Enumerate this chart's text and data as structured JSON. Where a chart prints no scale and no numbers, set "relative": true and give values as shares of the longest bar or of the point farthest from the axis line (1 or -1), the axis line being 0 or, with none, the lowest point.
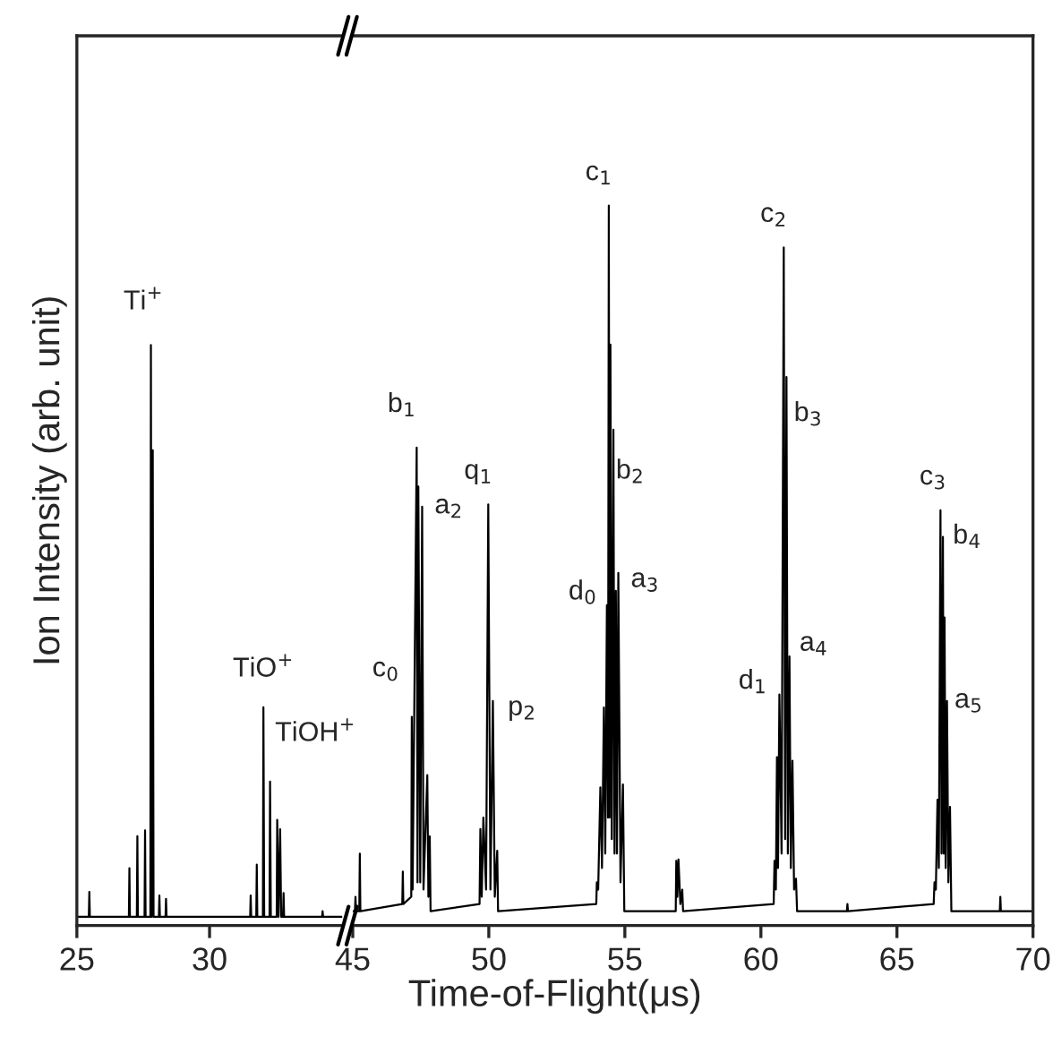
{
  "chart_data": [
    {
      "type": "line",
      "relative": true,
      "ylabel": "Ion Intensity (arb. unit)",
      "xlim": [
        25,
        35
      ],
      "xticks": [
        25,
        30
      ],
      "marker": "none",
      "line_style": "solid",
      "series": [
        {
          "color": "#000000",
          "x": [
            25.0,
            25.45,
            25.47,
            25.49,
            26.96,
            26.98,
            27.0,
            27.26,
            27.28,
            27.3,
            27.55,
            27.57,
            27.59,
            27.77,
            27.79,
            27.82,
            27.86,
            27.89,
            28.09,
            28.11,
            28.13,
            28.34,
            28.36,
            28.38,
            31.53,
            31.55,
            31.57,
            31.76,
            31.78,
            31.8,
            32.01,
            32.03,
            32.06,
            32.26,
            32.28,
            32.31,
            32.53,
            32.55,
            32.6,
            32.66,
            32.7,
            32.77,
            32.79,
            32.81,
            34.24,
            34.26,
            34.28,
            35.0
          ],
          "values": [
            0.015,
            0.015,
            0.058,
            0.015,
            0.015,
            0.099,
            0.015,
            0.015,
            0.154,
            0.015,
            0.015,
            0.164,
            0.015,
            0.015,
            1.0,
            0.015,
            0.819,
            0.015,
            0.015,
            0.052,
            0.015,
            0.015,
            0.046,
            0.015,
            0.015,
            0.052,
            0.015,
            0.015,
            0.105,
            0.015,
            0.015,
            0.376,
            0.015,
            0.015,
            0.248,
            0.015,
            0.015,
            0.182,
            0.015,
            0.166,
            0.015,
            0.015,
            0.056,
            0.015,
            0.015,
            0.025,
            0.015,
            0.015
          ]
        }
      ],
      "annotations": [
        {
          "text": "Ti$^{+}$",
          "x": 27.79,
          "y": 1.0
        },
        {
          "text": "TiO$^{+}$",
          "x": 32.03,
          "y": 0.376
        },
        {
          "text": "TiOH$^{+}$",
          "x": 32.28,
          "y": 0.248
        }
      ]
    },
    {
      "type": "line",
      "relative": true,
      "xlabel": "Time-of-Flight(μs)",
      "xlim": [
        45,
        70
      ],
      "xticks": [
        45,
        50,
        55,
        60,
        65,
        70
      ],
      "marker": "none",
      "line_style": "solid",
      "series": [
        {
          "color": "#000000",
          "x": [
            45.0,
            45.08,
            45.1,
            45.12,
            45.24,
            45.26,
            45.28,
            46.82,
            46.84,
            46.86,
            47.15,
            47.17,
            47.2,
            47.35,
            47.38,
            47.41,
            47.48,
            47.55,
            47.6,
            47.74,
            47.78,
            47.83,
            47.86,
            49.66,
            49.69,
            49.74,
            49.8,
            49.9,
            49.98,
            50.06,
            50.15,
            50.22,
            50.31,
            50.34,
            53.95,
            53.97,
            54.02,
            54.1,
            54.16,
            54.23,
            54.28,
            54.34,
            54.38,
            54.41,
            54.44,
            54.47,
            54.52,
            54.58,
            54.62,
            54.67,
            54.71,
            54.76,
            54.84,
            54.93,
            54.98,
            56.87,
            56.89,
            56.93,
            56.97,
            57.04,
            57.11,
            57.14,
            60.47,
            60.5,
            60.55,
            60.59,
            60.63,
            60.68,
            60.76,
            60.84,
            60.89,
            60.94,
            60.99,
            61.05,
            61.1,
            61.16,
            61.22,
            61.29,
            61.33,
            63.16,
            63.18,
            63.2,
            66.35,
            66.38,
            66.43,
            66.49,
            66.54,
            66.6,
            66.64,
            66.69,
            66.72,
            66.75,
            66.79,
            66.84,
            66.89,
            66.95,
            67.0,
            68.78,
            68.8,
            68.82,
            70.0
          ],
          "values": [
            0.02,
            0.02,
            0.04,
            0.02,
            0.02,
            0.1,
            0.02,
            0.03,
            0.075,
            0.03,
            0.04,
            0.29,
            0.05,
            0.664,
            0.06,
            0.61,
            0.06,
            0.582,
            0.05,
            0.209,
            0.04,
            0.124,
            0.02,
            0.03,
            0.134,
            0.04,
            0.15,
            0.05,
            0.585,
            0.05,
            0.312,
            0.04,
            0.104,
            0.02,
            0.03,
            0.06,
            0.05,
            0.192,
            0.08,
            0.303,
            0.1,
            0.445,
            0.15,
            1.0,
            0.15,
            0.807,
            0.12,
            0.689,
            0.1,
            0.465,
            0.1,
            0.49,
            0.06,
            0.196,
            0.02,
            0.02,
            0.09,
            0.04,
            0.092,
            0.03,
            0.05,
            0.02,
            0.03,
            0.09,
            0.05,
            0.234,
            0.08,
            0.321,
            0.1,
            0.942,
            0.12,
            0.762,
            0.1,
            0.374,
            0.08,
            0.229,
            0.05,
            0.065,
            0.02,
            0.02,
            0.03,
            0.02,
            0.03,
            0.06,
            0.05,
            0.175,
            0.08,
            0.577,
            0.1,
            0.54,
            0.1,
            0.428,
            0.08,
            0.312,
            0.06,
            0.165,
            0.02,
            0.02,
            0.04,
            0.02,
            0.02
          ]
        }
      ],
      "annotations": [
        {
          "text": "c$_{0}$",
          "x": 47.17,
          "y": 0.29
        },
        {
          "text": "b$_{1}$",
          "x": 47.35,
          "y": 0.664
        },
        {
          "text": "a$_{2}$",
          "x": 47.55,
          "y": 0.582
        },
        {
          "text": "q$_{1}$",
          "x": 49.98,
          "y": 0.585
        },
        {
          "text": "p$_{2}$",
          "x": 50.15,
          "y": 0.312
        },
        {
          "text": "c$_{1}$",
          "x": 54.41,
          "y": 1.0
        },
        {
          "text": "d$_{0}$",
          "x": 54.34,
          "y": 0.445
        },
        {
          "text": "b$_{2}$",
          "x": 54.58,
          "y": 0.689
        },
        {
          "text": "a$_{3}$",
          "x": 54.76,
          "y": 0.49
        },
        {
          "text": "c$_{2}$",
          "x": 60.84,
          "y": 0.942
        },
        {
          "text": "b$_{3}$",
          "x": 60.94,
          "y": 0.762
        },
        {
          "text": "d$_{1}$",
          "x": 60.68,
          "y": 0.321
        },
        {
          "text": "a$_{4}$",
          "x": 61.05,
          "y": 0.374
        },
        {
          "text": "c$_{3}$",
          "x": 66.6,
          "y": 0.577
        },
        {
          "text": "b$_{4}$",
          "x": 66.69,
          "y": 0.54
        },
        {
          "text": "a$_{5}$",
          "x": 66.84,
          "y": 0.312
        }
      ]
    }
  ]
}
